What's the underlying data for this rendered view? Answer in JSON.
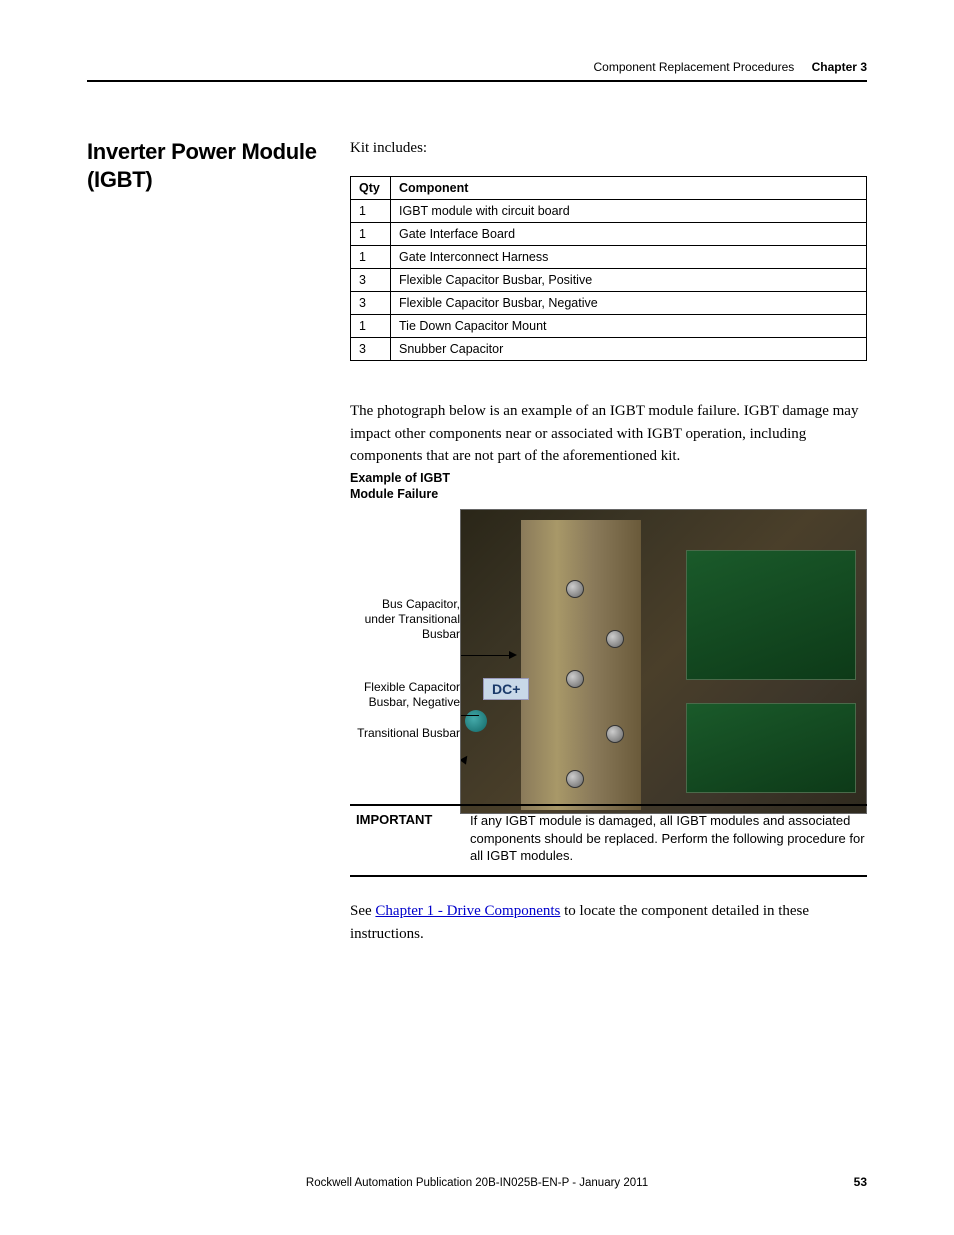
{
  "header": {
    "section": "Component Replacement Procedures",
    "chapter": "Chapter 3"
  },
  "title": "Inverter Power Module (IGBT)",
  "kit_intro": "Kit includes:",
  "table": {
    "headers": [
      "Qty",
      "Component"
    ],
    "rows": [
      [
        "1",
        "IGBT module with circuit board"
      ],
      [
        "1",
        "Gate Interface Board"
      ],
      [
        "1",
        "Gate Interconnect Harness"
      ],
      [
        "3",
        "Flexible Capacitor Busbar, Positive"
      ],
      [
        "3",
        "Flexible Capacitor Busbar, Negative"
      ],
      [
        "1",
        "Tie Down Capacitor Mount"
      ],
      [
        "3",
        "Snubber Capacitor"
      ]
    ]
  },
  "para1": "The photograph below is an example of an IGBT module failure. IGBT damage may impact other components near or associated with IGBT operation, including components that are not part of the aforementioned kit.",
  "figure": {
    "caption": "Example of IGBT Module Failure",
    "callout1": "Bus Capacitor, under Transitional Busbar",
    "callout2": "Flexible Capacitor Busbar, Negative",
    "callout3": "Transitional Busbar",
    "dc_label": "DC+"
  },
  "important": {
    "label": "IMPORTANT",
    "text": "If any IGBT module is damaged, all IGBT modules and associated components should be replaced. Perform the following procedure for all IGBT modules."
  },
  "para2_pre": "See ",
  "para2_link": "Chapter 1 - Drive Components",
  "para2_post": " to locate the component detailed in these instructions.",
  "footer": "Rockwell Automation Publication 20B-IN025B-EN-P - January 2011",
  "page": "53"
}
